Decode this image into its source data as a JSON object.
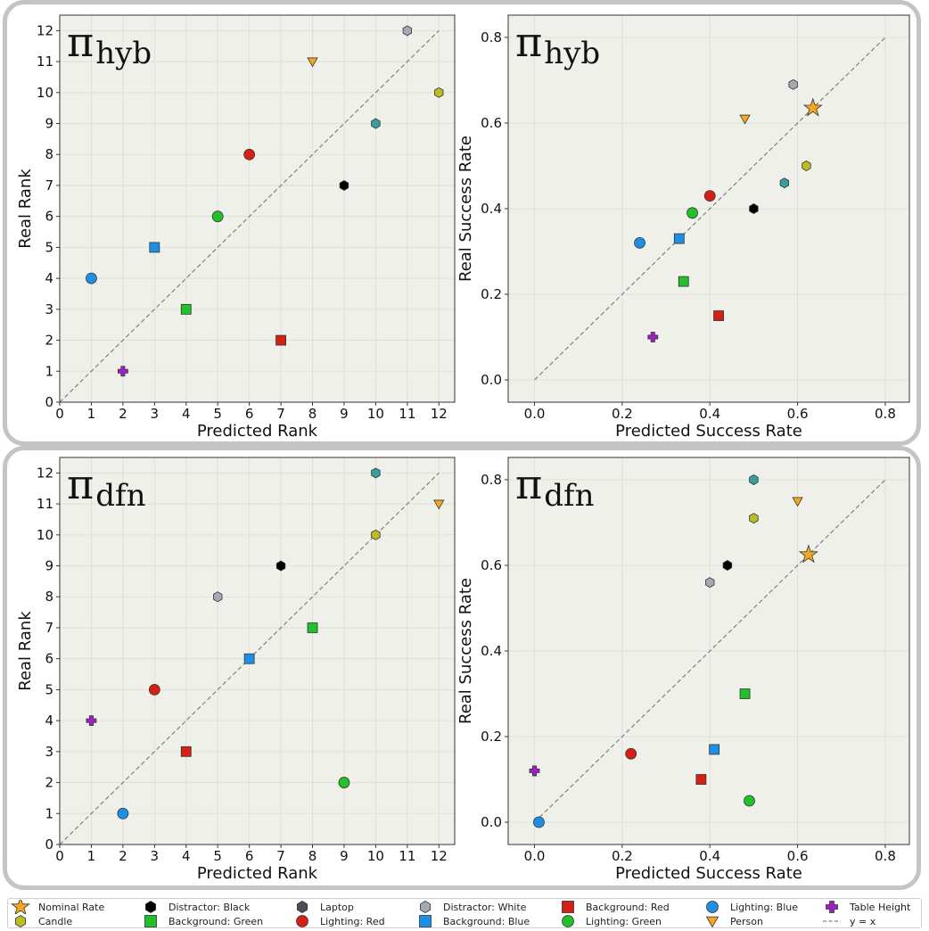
{
  "chart_data": [
    {
      "type": "scatter",
      "title": "π_hyb",
      "title_main": "π",
      "title_sub": "hyb",
      "xlabel": "Predicted Rank",
      "ylabel": "Real Rank",
      "xlim": [
        0,
        12.5
      ],
      "ylim": [
        0,
        12.5
      ],
      "xticks": [
        "0",
        "1",
        "2",
        "3",
        "4",
        "5",
        "6",
        "7",
        "8",
        "9",
        "10",
        "11",
        "12"
      ],
      "yticks": [
        "0",
        "1",
        "2",
        "3",
        "4",
        "5",
        "6",
        "7",
        "8",
        "9",
        "10",
        "11",
        "12"
      ],
      "grid": true,
      "reference_line": "y = x",
      "points": [
        {
          "series": "Distractor: White",
          "x": 11,
          "y": 12
        },
        {
          "series": "Person",
          "x": 8,
          "y": 11
        },
        {
          "series": "Candle",
          "x": 12,
          "y": 10
        },
        {
          "series": "Laptop",
          "x": 10,
          "y": 9
        },
        {
          "series": "Lighting: Red",
          "x": 6,
          "y": 8
        },
        {
          "series": "Distractor: Black",
          "x": 9,
          "y": 7
        },
        {
          "series": "Lighting: Green",
          "x": 5,
          "y": 6
        },
        {
          "series": "Background: Blue",
          "x": 3,
          "y": 5
        },
        {
          "series": "Lighting: Blue",
          "x": 1,
          "y": 4
        },
        {
          "series": "Background: Green",
          "x": 4,
          "y": 3
        },
        {
          "series": "Background: Red",
          "x": 7,
          "y": 2
        },
        {
          "series": "Table Height",
          "x": 2,
          "y": 1
        }
      ]
    },
    {
      "type": "scatter",
      "title": "π_hyb",
      "title_main": "π",
      "title_sub": "hyb",
      "xlabel": "Predicted Success Rate",
      "ylabel": "Real Success Rate",
      "xlim": [
        -0.06,
        0.855
      ],
      "ylim": [
        -0.052,
        0.852
      ],
      "xticks": [
        "0.0",
        "0.2",
        "0.4",
        "0.6",
        "0.8"
      ],
      "yticks": [
        "0.0",
        "0.2",
        "0.4",
        "0.6",
        "0.8"
      ],
      "grid": true,
      "reference_line": "y = x",
      "points": [
        {
          "series": "Distractor: White",
          "x": 0.59,
          "y": 0.69
        },
        {
          "series": "Nominal Rate",
          "x": 0.635,
          "y": 0.635
        },
        {
          "series": "Person",
          "x": 0.48,
          "y": 0.61
        },
        {
          "series": "Candle",
          "x": 0.62,
          "y": 0.5
        },
        {
          "series": "Laptop",
          "x": 0.57,
          "y": 0.46
        },
        {
          "series": "Lighting: Red",
          "x": 0.4,
          "y": 0.43
        },
        {
          "series": "Distractor: Black",
          "x": 0.5,
          "y": 0.4
        },
        {
          "series": "Lighting: Green",
          "x": 0.36,
          "y": 0.39
        },
        {
          "series": "Background: Blue",
          "x": 0.33,
          "y": 0.33
        },
        {
          "series": "Lighting: Blue",
          "x": 0.24,
          "y": 0.32
        },
        {
          "series": "Background: Green",
          "x": 0.34,
          "y": 0.23
        },
        {
          "series": "Background: Red",
          "x": 0.42,
          "y": 0.15
        },
        {
          "series": "Table Height",
          "x": 0.27,
          "y": 0.1
        }
      ]
    },
    {
      "type": "scatter",
      "title": "π_dfn",
      "title_main": "π",
      "title_sub": "dfn",
      "xlabel": "Predicted Rank",
      "ylabel": "Real Rank",
      "xlim": [
        0,
        12.5
      ],
      "ylim": [
        0,
        12.5
      ],
      "xticks": [
        "0",
        "1",
        "2",
        "3",
        "4",
        "5",
        "6",
        "7",
        "8",
        "9",
        "10",
        "11",
        "12"
      ],
      "yticks": [
        "0",
        "1",
        "2",
        "3",
        "4",
        "5",
        "6",
        "7",
        "8",
        "9",
        "10",
        "11",
        "12"
      ],
      "grid": true,
      "reference_line": "y = x",
      "points": [
        {
          "series": "Laptop",
          "x": 10,
          "y": 12
        },
        {
          "series": "Person",
          "x": 12,
          "y": 11
        },
        {
          "series": "Candle",
          "x": 10,
          "y": 10
        },
        {
          "series": "Distractor: Black",
          "x": 7,
          "y": 9
        },
        {
          "series": "Distractor: White",
          "x": 5,
          "y": 8
        },
        {
          "series": "Background: Green",
          "x": 8,
          "y": 7
        },
        {
          "series": "Background: Blue",
          "x": 6,
          "y": 6
        },
        {
          "series": "Lighting: Red",
          "x": 3,
          "y": 5
        },
        {
          "series": "Table Height",
          "x": 1,
          "y": 4
        },
        {
          "series": "Background: Red",
          "x": 4,
          "y": 3
        },
        {
          "series": "Lighting: Green",
          "x": 9,
          "y": 2
        },
        {
          "series": "Lighting: Blue",
          "x": 2,
          "y": 1
        }
      ]
    },
    {
      "type": "scatter",
      "title": "π_dfn",
      "title_main": "π",
      "title_sub": "dfn",
      "xlabel": "Predicted Success Rate",
      "ylabel": "Real Success Rate",
      "xlim": [
        -0.06,
        0.855
      ],
      "ylim": [
        -0.052,
        0.852
      ],
      "xticks": [
        "0.0",
        "0.2",
        "0.4",
        "0.6",
        "0.8"
      ],
      "yticks": [
        "0.0",
        "0.2",
        "0.4",
        "0.6",
        "0.8"
      ],
      "grid": true,
      "reference_line": "y = x",
      "points": [
        {
          "series": "Laptop",
          "x": 0.5,
          "y": 0.8
        },
        {
          "series": "Person",
          "x": 0.6,
          "y": 0.75
        },
        {
          "series": "Candle",
          "x": 0.5,
          "y": 0.71
        },
        {
          "series": "Nominal Rate",
          "x": 0.625,
          "y": 0.625
        },
        {
          "series": "Distractor: Black",
          "x": 0.44,
          "y": 0.6
        },
        {
          "series": "Distractor: White",
          "x": 0.4,
          "y": 0.56
        },
        {
          "series": "Background: Green",
          "x": 0.48,
          "y": 0.3
        },
        {
          "series": "Background: Blue",
          "x": 0.41,
          "y": 0.17
        },
        {
          "series": "Lighting: Red",
          "x": 0.22,
          "y": 0.16
        },
        {
          "series": "Table Height",
          "x": 0.0,
          "y": 0.12
        },
        {
          "series": "Background: Red",
          "x": 0.38,
          "y": 0.1
        },
        {
          "series": "Lighting: Green",
          "x": 0.49,
          "y": 0.05
        },
        {
          "series": "Lighting: Blue",
          "x": 0.01,
          "y": 0.0
        }
      ]
    }
  ],
  "series_styles": {
    "Nominal Rate": {
      "marker": "star",
      "color": "#f5a623"
    },
    "Candle": {
      "marker": "hexagon",
      "color": "#bcbd22"
    },
    "Distractor: Black": {
      "marker": "hexagon",
      "color": "#000000"
    },
    "Background: Green": {
      "marker": "square",
      "color": "#22c02a"
    },
    "Laptop": {
      "marker": "hexagon",
      "color": "#3a9ea0",
      "legend_color": "#4a4d55"
    },
    "Lighting: Red": {
      "marker": "circle",
      "color": "#d62015"
    },
    "Distractor: White": {
      "marker": "hexagon",
      "color": "#a4a9b6"
    },
    "Background: Blue": {
      "marker": "square",
      "color": "#1e8fe6"
    },
    "Background: Red": {
      "marker": "square",
      "color": "#d62015"
    },
    "Lighting: Green": {
      "marker": "circle",
      "color": "#22c02a"
    },
    "Lighting: Blue": {
      "marker": "circle",
      "color": "#1e8fe6"
    },
    "Person": {
      "marker": "triangle-down",
      "color": "#f5a623"
    },
    "Table Height": {
      "marker": "plus",
      "color": "#a020c8"
    },
    "y = x": {
      "marker": "dashed-line",
      "color": "#808080"
    }
  },
  "legend": {
    "placement": "bottom",
    "items": [
      "Nominal Rate",
      "Candle",
      "Distractor: Black",
      "Background: Green",
      "Laptop",
      "Lighting: Red",
      "Distractor: White",
      "Background: Blue",
      "Background: Red",
      "Lighting: Green",
      "Lighting: Blue",
      "Person",
      "Table Height",
      "y = x"
    ]
  },
  "colors": {
    "axes_bg": "#f0f0eb",
    "panel_border": "#c4c4c4"
  }
}
